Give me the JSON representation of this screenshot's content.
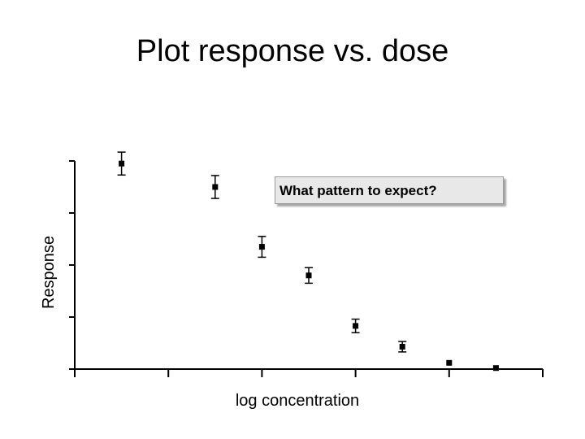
{
  "slide": {
    "title": "Plot response vs. dose",
    "callout": "What pattern to expect?"
  },
  "chart_data": {
    "type": "scatter",
    "title": "Plot response vs. dose",
    "xlabel": "log concentration",
    "ylabel": "Response",
    "tick_labels_shown": false,
    "error_bars": true,
    "grid": false,
    "marker_color": "#000000",
    "x_ticks": 6,
    "y_ticks": 5,
    "xlim": [
      0,
      5
    ],
    "ylim": [
      0,
      4
    ],
    "series": [
      {
        "x": [
          0.5,
          1.5,
          2.0,
          2.5,
          3.0,
          3.5,
          4.0,
          4.5
        ],
        "y": [
          3.95,
          3.5,
          2.35,
          1.8,
          0.83,
          0.43,
          0.12,
          0.02
        ],
        "error": [
          0.22,
          0.22,
          0.2,
          0.15,
          0.13,
          0.1,
          0.0,
          0.0
        ]
      }
    ]
  }
}
